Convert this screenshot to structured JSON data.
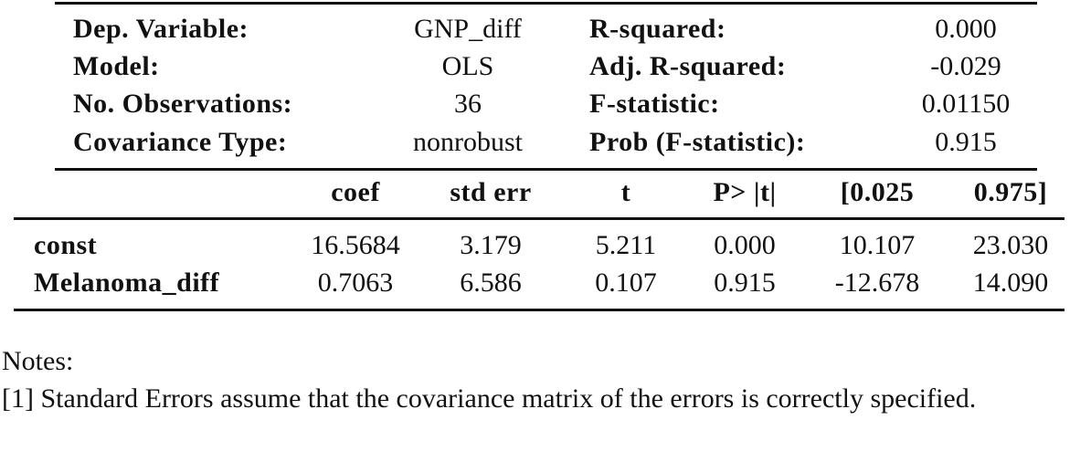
{
  "summary": {
    "rows": [
      [
        "Dep. Variable:",
        "GNP_diff",
        "R-squared:",
        "0.000"
      ],
      [
        "Model:",
        "OLS",
        "Adj. R-squared:",
        "-0.029"
      ],
      [
        "No. Observations:",
        "36",
        "F-statistic:",
        "0.01150"
      ],
      [
        "Covariance Type:",
        "nonrobust",
        "Prob (F-statistic):",
        "0.915"
      ]
    ]
  },
  "coef_table": {
    "header": [
      "coef",
      "std err",
      "t",
      "P> |t|",
      "[0.025",
      "0.975]"
    ],
    "rows": [
      [
        "const",
        "16.5684",
        "3.179",
        "5.211",
        "0.000",
        "10.107",
        "23.030"
      ],
      [
        "Melanoma_diff",
        "0.7063",
        "6.586",
        "0.107",
        "0.915",
        "-12.678",
        "14.090"
      ]
    ]
  },
  "notes": [
    "Notes:",
    "[1] Standard Errors assume that the covariance matrix of the errors is correctly specified."
  ]
}
